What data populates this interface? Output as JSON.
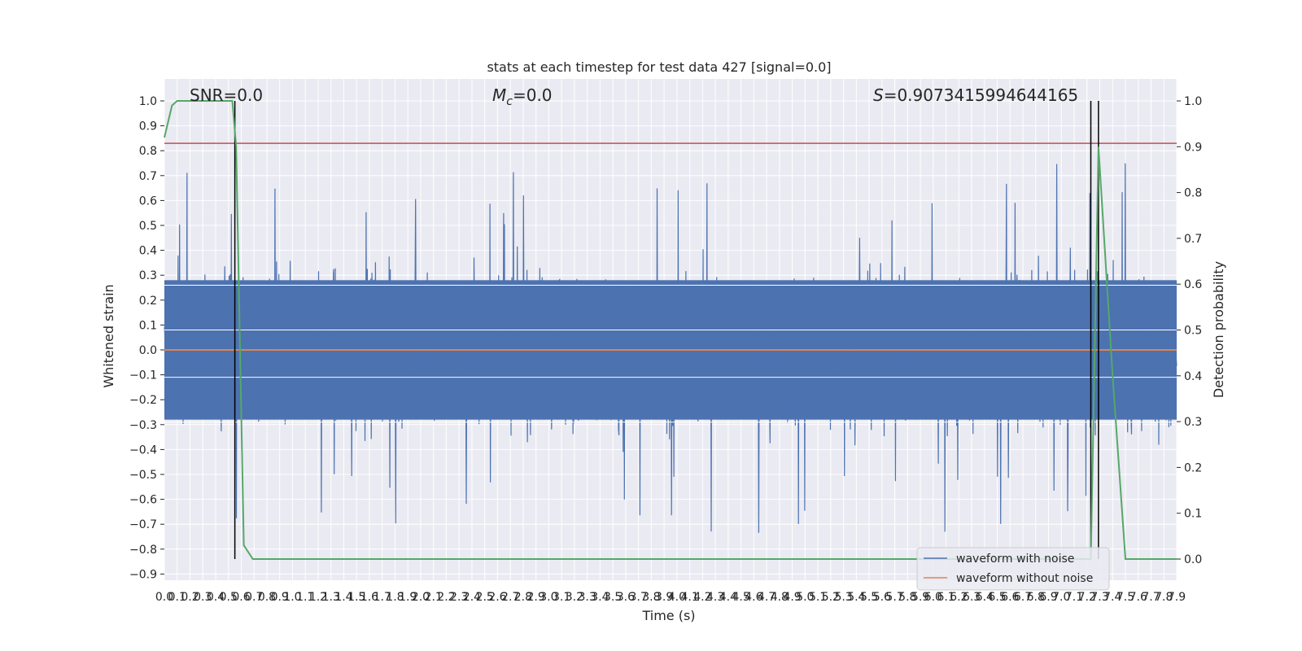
{
  "chart_data": {
    "type": "line",
    "title": "stats at each timestep for test data 427 [signal=0.0]",
    "xlabel": "Time (s)",
    "ylabel_left": "Whitened strain",
    "ylabel_right": "Detection probability",
    "xlim": [
      0.0,
      7.9
    ],
    "ylim_left": [
      -0.94,
      1.09
    ],
    "ylim_right": [
      0.0,
      1.0
    ],
    "x_ticks": [
      "0.0",
      "0.1",
      "0.2",
      "0.3",
      "0.4",
      "0.5",
      "0.6",
      "0.7",
      "0.8",
      "0.9",
      "1.0",
      "1.1",
      "1.2",
      "1.3",
      "1.4",
      "1.5",
      "1.6",
      "1.7",
      "1.8",
      "1.9",
      "2.0",
      "2.1",
      "2.2",
      "2.3",
      "2.4",
      "2.5",
      "2.6",
      "2.7",
      "2.8",
      "2.9",
      "3.0",
      "3.1",
      "3.2",
      "3.3",
      "3.4",
      "3.5",
      "3.6",
      "3.7",
      "3.8",
      "3.9",
      "4.0",
      "4.1",
      "4.2",
      "4.3",
      "4.4",
      "4.5",
      "4.6",
      "4.7",
      "4.8",
      "4.9",
      "5.0",
      "5.1",
      "5.2",
      "5.3",
      "5.4",
      "5.5",
      "5.6",
      "5.7",
      "5.8",
      "5.9",
      "6.0",
      "6.1",
      "6.2",
      "6.3",
      "6.4",
      "6.5",
      "6.6",
      "6.7",
      "6.8",
      "6.9",
      "7.0",
      "7.1",
      "7.2",
      "7.3",
      "7.4",
      "7.5",
      "7.6",
      "7.7",
      "7.8",
      "7.9"
    ],
    "y_ticks_left": [
      "1.0",
      "0.9",
      "0.8",
      "0.7",
      "0.6",
      "0.5",
      "0.4",
      "0.3",
      "0.2",
      "0.1",
      "0.0",
      "−0.1",
      "−0.2",
      "−0.3",
      "−0.4",
      "−0.5",
      "−0.6",
      "−0.7",
      "−0.8",
      "−0.9"
    ],
    "y_ticks_right": [
      "1.0",
      "0.9",
      "0.8",
      "0.7",
      "0.6",
      "0.5",
      "0.4",
      "0.3",
      "0.2",
      "0.1",
      "0.0"
    ],
    "annotations": {
      "snr": "SNR=0.0",
      "mc_symbol": "M",
      "mc_sub": "c",
      "mc_value": "=0.0",
      "s_symbol": "S",
      "s_value": "=0.9073415994644165"
    },
    "threshold": 0.9073415994644165,
    "vlines_x": [
      0.55,
      7.23,
      7.29
    ],
    "series": [
      {
        "name": "waveform with noise",
        "color": "#4c72b0",
        "axis": "left",
        "kind": "noise",
        "core_amplitude": 0.28,
        "peak_max": 1.0,
        "peak_min": -0.84
      },
      {
        "name": "waveform without noise",
        "color": "#dd8452",
        "axis": "left",
        "value": 0.0
      },
      {
        "name": "detection probability",
        "color": "#55a868",
        "axis": "right",
        "x": [
          0.0,
          0.06,
          0.1,
          0.15,
          0.53,
          0.56,
          0.62,
          0.69,
          1.0,
          2.0,
          3.0,
          4.0,
          5.0,
          6.0,
          7.0,
          7.23,
          7.29,
          7.4,
          7.5,
          7.9
        ],
        "y": [
          0.92,
          0.99,
          1.0,
          1.0,
          1.0,
          0.9,
          0.03,
          0.0,
          0.0,
          0.0,
          0.0,
          0.0,
          0.0,
          0.0,
          0.0,
          0.0,
          0.9,
          0.4,
          0.0,
          0.0
        ]
      }
    ],
    "legend": {
      "position": "lower-right",
      "items": [
        "waveform with noise",
        "waveform without noise"
      ]
    }
  },
  "colors": {
    "axes_bg": "#eaeaf2",
    "grid": "#ffffff",
    "threshold_line": "#c44e52",
    "vline": "#000000"
  }
}
